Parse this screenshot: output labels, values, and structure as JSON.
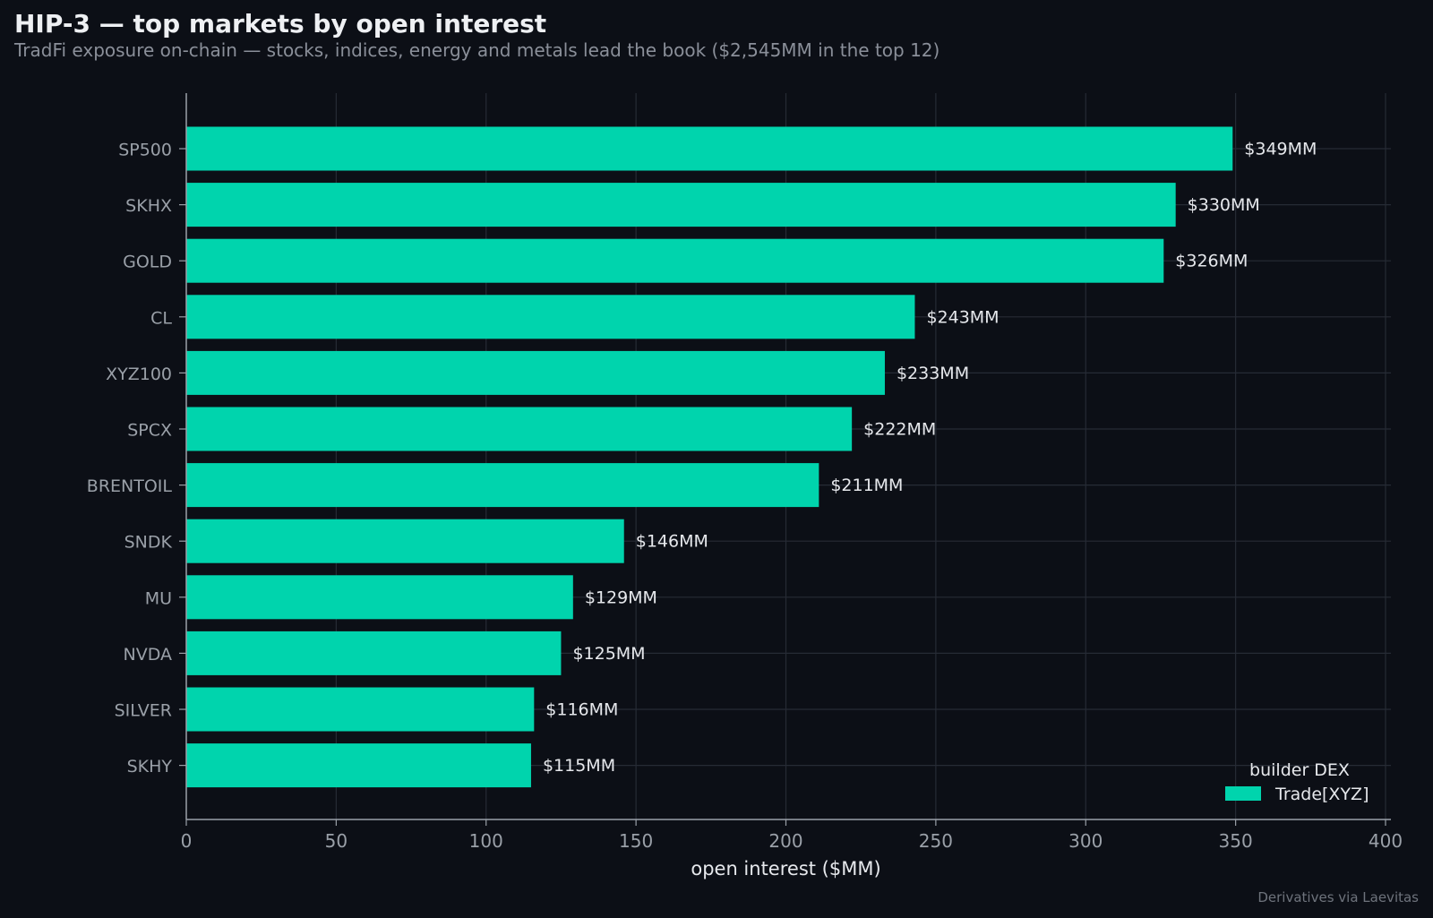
{
  "header": {
    "title": "HIP-3 — top markets by open interest",
    "subtitle": "TradFi exposure on-chain — stocks, indices, energy and metals lead the book ($2,545MM in the top 12)"
  },
  "footer": {
    "credit": "Derivatives via Laevitas"
  },
  "colors": {
    "background": "#0c0f16",
    "bar": "#00d4ad",
    "grid": "#262b35",
    "axis": "#9aa0a8",
    "tick_label": "#9aa0a8",
    "value_label": "#e6e8ec"
  },
  "chart_data": {
    "type": "bar",
    "orientation": "horizontal",
    "categories": [
      "SP500",
      "SKHX",
      "GOLD",
      "CL",
      "XYZ100",
      "SPCX",
      "BRENTOIL",
      "SNDK",
      "MU",
      "NVDA",
      "SILVER",
      "SKHY"
    ],
    "series": [
      {
        "name": "Trade[XYZ]",
        "values": [
          349,
          330,
          326,
          243,
          233,
          222,
          211,
          146,
          129,
          125,
          116,
          115
        ]
      }
    ],
    "data_labels": [
      "$349MM",
      "$330MM",
      "$326MM",
      "$243MM",
      "$233MM",
      "$222MM",
      "$211MM",
      "$146MM",
      "$129MM",
      "$125MM",
      "$116MM",
      "$115MM"
    ],
    "xlabel": "open interest ($MM)",
    "ylabel": "",
    "xlim": [
      0,
      400
    ],
    "xticks": [
      0,
      50,
      100,
      150,
      200,
      250,
      300,
      350,
      400
    ],
    "grid": true,
    "legend": {
      "title": "builder DEX",
      "placement": "bottom-right",
      "entries": [
        "Trade[XYZ]"
      ]
    }
  }
}
